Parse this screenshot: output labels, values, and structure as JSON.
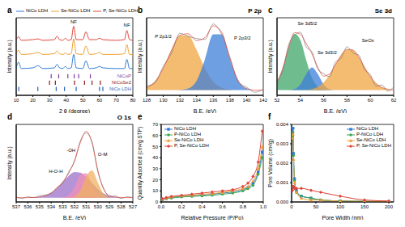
{
  "chart_data": [
    {
      "panel": "a",
      "type": "line",
      "x_label": "2 θ (degree)",
      "y_label": "Intensity (a.u.)",
      "xlim": [
        10,
        80
      ],
      "xticks": [
        10,
        20,
        30,
        40,
        50,
        60,
        70,
        80
      ],
      "ylim": [
        0,
        110
      ],
      "tick_labels": "x",
      "legend": "top",
      "x": [
        10,
        11.5,
        13,
        20,
        23,
        26,
        33,
        34.5,
        36,
        38,
        39.5,
        41,
        43,
        44.5,
        46,
        50,
        51.8,
        54,
        58,
        60,
        62,
        70,
        75,
        76.4,
        78,
        80
      ],
      "series": [
        {
          "name": "NiCo LDH",
          "color": "#2e7bd6",
          "values": [
            39,
            47,
            38,
            39,
            42,
            38,
            39,
            44,
            39,
            38,
            41,
            38,
            39,
            58,
            39,
            38,
            49,
            38,
            39,
            41,
            39,
            38,
            38,
            51,
            38,
            38
          ]
        },
        {
          "name": "Se-NiCo LDH",
          "color": "#f0a030",
          "values": [
            59,
            64,
            58,
            59,
            61,
            58,
            59,
            63,
            59,
            58,
            60,
            58,
            59,
            80,
            59,
            58,
            70,
            58,
            59,
            61,
            58,
            58,
            59,
            72,
            58,
            58
          ]
        },
        {
          "name": "P, Se-NiCo LDH",
          "color": "#e0453a",
          "values": [
            79,
            83,
            78,
            79,
            80,
            78,
            79,
            84,
            79,
            78,
            81,
            78,
            79,
            98,
            79,
            79,
            90,
            79,
            79,
            81,
            79,
            78,
            79,
            92,
            79,
            78
          ]
        }
      ],
      "references": [
        {
          "name": "NiCoP",
          "color": "#7b3fa0",
          "positions": [
            31,
            35.5,
            41,
            44.8,
            47.5,
            54.5
          ],
          "y_range": [
            24,
            30
          ]
        },
        {
          "name": "NiCoSe2",
          "color": "#8b1a1a",
          "positions": [
            30,
            33.5,
            45,
            51,
            55.5,
            60.5
          ],
          "y_range": [
            15,
            21
          ]
        },
        {
          "name": "NiCo LDH",
          "color": "#1f5fbf",
          "positions": [
            11.5,
            23,
            34,
            39,
            46,
            60,
            62
          ],
          "y_range": [
            6,
            12
          ]
        }
      ],
      "annotations": [
        {
          "text": "NF",
          "x": 44.5,
          "y": 104
        },
        {
          "text": "NF",
          "x": 76.4,
          "y": 99
        }
      ]
    },
    {
      "panel": "b",
      "type": "line",
      "title": "P 2p",
      "x_label": "B.E. (eV)",
      "y_label": "Intensity (a.u.)",
      "xlim": [
        128,
        142
      ],
      "xticks": [
        128,
        130,
        132,
        134,
        136,
        138,
        140,
        142
      ],
      "ylim": [
        -5,
        70
      ],
      "tick_labels": "x",
      "x": [
        128,
        129,
        130,
        131,
        132,
        133,
        134,
        135,
        136,
        137,
        138,
        139,
        140,
        141,
        142
      ],
      "series": [
        {
          "type": "area",
          "color": "#f0a540",
          "values": [
            2.4,
            8.3,
            21,
            38.9,
            52.9,
            52.9,
            38.9,
            21,
            8.3,
            2.4,
            0.5,
            0,
            0,
            0,
            0
          ]
        },
        {
          "type": "area",
          "color": "#3f7fd9",
          "values": [
            0,
            0,
            0,
            0,
            0.2,
            1.6,
            9.1,
            29.8,
            53.9,
            53.9,
            29.8,
            9.1,
            1.6,
            0,
            0
          ]
        },
        {
          "type": "line",
          "color": "#808080",
          "values": [
            4,
            7,
            23,
            36,
            55,
            52,
            50,
            49,
            64,
            54,
            32,
            8,
            3,
            -2,
            1
          ]
        },
        {
          "type": "line",
          "color": "#e0453a",
          "values": [
            2.4,
            8.3,
            21,
            38.9,
            53.1,
            54.5,
            48,
            50.8,
            62.2,
            56.3,
            30.3,
            9.1,
            1.6,
            0,
            0
          ]
        }
      ],
      "annotations": [
        {
          "text": "P 2p3/2",
          "x": 139.5,
          "y": 50
        },
        {
          "text": "P 2p1/2",
          "x": 130,
          "y": 52
        }
      ]
    },
    {
      "panel": "c",
      "type": "line",
      "title": "Se 3d",
      "x_label": "B.E. (eV)",
      "y_label": "Intensity (a.u.)",
      "xlim": [
        52,
        62
      ],
      "xticks": [
        52,
        54,
        56,
        58,
        60,
        62
      ],
      "ylim": [
        -5,
        70
      ],
      "tick_labels": "x",
      "x": [
        52,
        52.5,
        53,
        53.5,
        54,
        54.5,
        55,
        55.5,
        56,
        56.5,
        57,
        57.5,
        58,
        58.5,
        59,
        59.5,
        60,
        60.5,
        61,
        61.5,
        62
      ],
      "series": [
        {
          "type": "area",
          "color": "#3fa56a",
          "values": [
            7.4,
            21.4,
            41.5,
            54.6,
            48.5,
            29.2,
            11.9,
            3.3,
            0.6,
            0,
            0,
            0,
            0,
            0,
            0,
            0,
            0,
            0,
            0,
            0,
            0
          ]
        },
        {
          "type": "area",
          "color": "#3f7fd9",
          "values": [
            0,
            0,
            0,
            1,
            5.5,
            15.6,
            22,
            15.6,
            5.5,
            1,
            0,
            0,
            0,
            0,
            0,
            0,
            0,
            0,
            0,
            0,
            0
          ]
        },
        {
          "type": "area",
          "color": "#f0a540",
          "values": [
            0,
            0,
            0,
            0,
            0,
            0.3,
            1.1,
            3.2,
            7.5,
            14.7,
            24.3,
            33.8,
            39.4,
            38.8,
            32,
            22.2,
            13,
            6.4,
            2.6,
            0.9,
            0.3
          ]
        },
        {
          "type": "line",
          "color": "#808080",
          "values": [
            9,
            19,
            44,
            53,
            56,
            42,
            37,
            20,
            16,
            13,
            27,
            31,
            42,
            36,
            34,
            20,
            15,
            4,
            5,
            -1,
            3
          ]
        },
        {
          "type": "line",
          "color": "#e0453a",
          "values": [
            7.4,
            21.4,
            41.5,
            55.6,
            54,
            45.1,
            35,
            22.1,
            13.6,
            15.7,
            24.3,
            33.8,
            39.4,
            38.8,
            32,
            22.2,
            13,
            6.4,
            2.6,
            0.9,
            0.3
          ]
        }
      ],
      "annotations": [
        {
          "text": "Se 3d5/2",
          "x": 54.6,
          "y": 64
        },
        {
          "text": "Se 3d3/2",
          "x": 56.3,
          "y": 36
        },
        {
          "text": "SeOx",
          "x": 59.8,
          "y": 48
        }
      ]
    },
    {
      "panel": "d",
      "type": "line",
      "title": "O 1s",
      "x_label": "B.E. (eV)",
      "y_label": "Intensity (a.u.)",
      "xlim": [
        537,
        527
      ],
      "xticks": [
        537,
        536,
        535,
        534,
        533,
        532,
        531,
        530,
        529,
        528,
        527
      ],
      "ylim": [
        -5,
        85
      ],
      "tick_labels": "x",
      "x": [
        537,
        536.5,
        536,
        535.5,
        535,
        534.5,
        534,
        533.5,
        533,
        532.5,
        532,
        531.5,
        531,
        530.5,
        530,
        529.5,
        529,
        528.5,
        528,
        527.5,
        527
      ],
      "series": [
        {
          "type": "area",
          "color": "#9b6fc9",
          "values": [
            0,
            0,
            0,
            0.3,
            0.8,
            2.4,
            5.6,
            11,
            18.2,
            25.3,
            29.6,
            29.1,
            24,
            16.7,
            9.8,
            4.8,
            2,
            0.7,
            0.2,
            0,
            0
          ]
        },
        {
          "type": "area",
          "color": "#f08fb8",
          "values": [
            0,
            0,
            0,
            0,
            0,
            0,
            0,
            0,
            0.3,
            2.9,
            12.3,
            26.5,
            28.4,
            15.2,
            4.1,
            0.5,
            0,
            0,
            0,
            0,
            0
          ]
        },
        {
          "type": "area",
          "color": "#f0b060",
          "values": [
            0,
            0,
            0,
            0,
            0,
            0,
            0,
            0,
            0,
            0,
            1.2,
            8.4,
            24.6,
            31.5,
            17.7,
            4.3,
            0.5,
            0,
            0,
            0,
            0
          ]
        },
        {
          "type": "line",
          "color": "#808080",
          "values": [
            1,
            -1,
            1,
            0,
            2,
            3,
            5,
            12,
            17,
            30,
            42,
            66,
            75,
            65,
            30,
            11,
            1,
            2,
            -1,
            1,
            0
          ]
        },
        {
          "type": "line",
          "color": "#e0453a",
          "values": [
            0,
            0,
            0,
            0.3,
            0.8,
            2.4,
            5.6,
            11,
            18.5,
            28.2,
            43.1,
            64,
            77,
            63.4,
            31.6,
            9.6,
            2.5,
            0.7,
            0.2,
            0,
            0
          ]
        }
      ],
      "annotations": [
        {
          "text": "H-O-H",
          "x": 533.6,
          "y": 30
        },
        {
          "text": "-OH",
          "x": 532.3,
          "y": 55
        },
        {
          "text": "O-M",
          "x": 529.6,
          "y": 50
        }
      ]
    },
    {
      "panel": "e",
      "type": "line",
      "x_label": "Relative Pressure (P/Po)",
      "y_label": "Quantity Adsorbed (cm³/g STP)",
      "xlim": [
        0,
        1
      ],
      "xticks": [
        {
          "value": 0,
          "label": "0.0"
        },
        0.2,
        0.4,
        0.6,
        0.8,
        {
          "value": 1,
          "label": "1.0"
        }
      ],
      "ylim": [
        0,
        70
      ],
      "yticks": [
        0,
        10,
        20,
        30,
        40,
        50,
        60,
        70
      ],
      "legend": "upper left",
      "x": [
        0.01,
        0.05,
        0.1,
        0.2,
        0.3,
        0.4,
        0.5,
        0.6,
        0.7,
        0.8,
        0.85,
        0.9,
        0.95,
        0.99
      ],
      "series": [
        {
          "name": "NiCo LDH",
          "color": "#2e7bd6",
          "marker": "square",
          "values": [
            2,
            3,
            4,
            5,
            5.5,
            6,
            7,
            8,
            9,
            11,
            13,
            17,
            27,
            45
          ]
        },
        {
          "name": "P-NiCo LDH",
          "color": "#3aa655",
          "marker": "circle",
          "values": [
            2,
            3,
            3.5,
            4.5,
            5,
            5.5,
            6,
            7,
            8,
            10,
            12,
            15,
            25,
            40
          ]
        },
        {
          "name": "Se-NiCo LDH",
          "color": "#f0a030",
          "marker": "triangle",
          "values": [
            2.5,
            3.5,
            4.5,
            5.5,
            6,
            7,
            7.5,
            8.5,
            10,
            12,
            14,
            19,
            30,
            50
          ]
        },
        {
          "name": "P, Se-NiCo LDH",
          "color": "#e0453a",
          "marker": "diamond",
          "values": [
            3,
            4,
            5,
            6,
            7,
            8,
            9,
            10,
            11,
            14,
            17,
            23,
            36,
            64
          ]
        }
      ]
    },
    {
      "panel": "f",
      "type": "line",
      "x_label": "Pore Width (nm)",
      "y_label": "Pore Volume (cm³/g)",
      "xlim": [
        0,
        210
      ],
      "xticks": [
        0,
        50,
        100,
        150,
        200
      ],
      "ylim": [
        0,
        0.004
      ],
      "yticks": [
        {
          "value": 0,
          "label": "0.000"
        },
        0.001,
        0.002,
        0.003,
        0.004
      ],
      "legend": "upper right",
      "x": [
        2,
        3,
        4,
        6,
        10,
        20,
        40,
        60,
        100,
        150,
        200
      ],
      "series": [
        {
          "name": "NiCo LDH",
          "color": "#2e7bd6",
          "marker": "square",
          "values": [
            0.0036,
            0.0038,
            0.0025,
            0.0012,
            0.0006,
            0.0003,
            0.0002,
            0.0001,
            5e-05,
            3e-05,
            2e-05
          ]
        },
        {
          "name": "P-NiCo LDH",
          "color": "#3aa655",
          "marker": "circle",
          "values": [
            0.0034,
            0.0036,
            0.0024,
            0.0011,
            0.0005,
            0.0003,
            0.0002,
            0.0001,
            5e-05,
            3e-05,
            2e-05
          ]
        },
        {
          "name": "Se-NiCo LDH",
          "color": "#f0a030",
          "marker": "triangle",
          "values": [
            0.0033,
            0.0035,
            0.0022,
            0.001,
            0.0005,
            0.0002,
            0.0001,
            0.0001,
            4e-05,
            3e-05,
            2e-05
          ]
        },
        {
          "name": "P, Se-NiCo LDH",
          "color": "#e0453a",
          "marker": "diamond",
          "values": [
            0.0006,
            0.0008,
            0.0008,
            0.0007,
            0.0007,
            0.0007,
            0.0006,
            0.0005,
            0.0003,
            0.0001,
            5e-05
          ]
        }
      ]
    }
  ]
}
